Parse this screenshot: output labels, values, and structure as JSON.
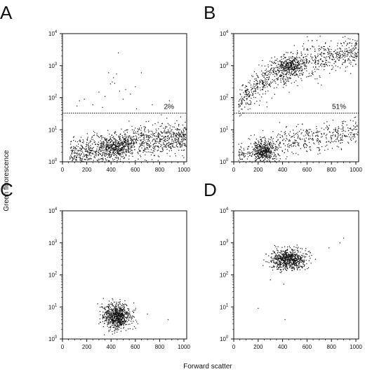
{
  "figure": {
    "ylabel": "Green fluorescence",
    "xlabel": "Forward scatter"
  },
  "chart_data": [
    {
      "type": "scatter",
      "panel": "A",
      "xlim": [
        0,
        1023
      ],
      "ylim": [
        1,
        10000
      ],
      "yscale": "log",
      "x_ticks": [
        "0",
        "200",
        "400",
        "600",
        "800",
        "1000"
      ],
      "y_ticks": [
        "10",
        "10",
        "10",
        "10",
        "10"
      ],
      "y_tick_exponents": [
        "0",
        "1",
        "2",
        "3",
        "4"
      ],
      "gate": {
        "y": 33,
        "label": "2%"
      },
      "populations": [
        {
          "x_trend": [
            [
              60,
              1.6
            ],
            [
              300,
              2.2
            ],
            [
              500,
              3.2
            ],
            [
              700,
              4.5
            ],
            [
              980,
              6
            ]
          ],
          "x_range": [
            60,
            1020
          ],
          "n": 1200,
          "log_spread": 0.24
        },
        {
          "center": [
            450,
            3
          ],
          "sd": [
            60,
            0.15
          ],
          "n": 250
        },
        {
          "points": [
            [
              380,
              600
            ],
            [
              395,
              270
            ],
            [
              410,
              310
            ],
            [
              430,
              280
            ],
            [
              445,
              550
            ],
            [
              460,
              2500
            ],
            [
              520,
              180
            ],
            [
              560,
              130
            ],
            [
              650,
              600
            ],
            [
              880,
              80
            ],
            [
              600,
              220
            ],
            [
              470,
              160
            ],
            [
              350,
              110
            ],
            [
              300,
              150
            ],
            [
              140,
              80
            ],
            [
              180,
              90
            ],
            [
              420,
              420
            ],
            [
              500,
              90
            ],
            [
              740,
              60
            ],
            [
              250,
              60
            ],
            [
              330,
              50
            ],
            [
              610,
              45
            ],
            [
              870,
              50
            ],
            [
              120,
              55
            ]
          ]
        }
      ]
    },
    {
      "type": "scatter",
      "panel": "B",
      "xlim": [
        0,
        1023
      ],
      "ylim": [
        1,
        10000
      ],
      "yscale": "log",
      "x_ticks": [
        "0",
        "200",
        "400",
        "600",
        "800",
        "1000"
      ],
      "y_ticks": [
        "10",
        "10",
        "10",
        "10",
        "10"
      ],
      "y_tick_exponents": [
        "0",
        "1",
        "2",
        "3",
        "4"
      ],
      "gate": {
        "y": 33,
        "label": "51%"
      },
      "populations": [
        {
          "x_trend": [
            [
              60,
              80
            ],
            [
              200,
              250
            ],
            [
              400,
              700
            ],
            [
              600,
              1300
            ],
            [
              800,
              2000
            ],
            [
              1000,
              2800
            ]
          ],
          "x_range": [
            40,
            1020
          ],
          "n": 900,
          "log_spread": 0.25
        },
        {
          "center": [
            460,
            1000
          ],
          "sd": [
            60,
            0.14
          ],
          "n": 250
        },
        {
          "x_trend": [
            [
              40,
              1.5
            ],
            [
              300,
              3
            ],
            [
              500,
              4
            ],
            [
              700,
              6
            ],
            [
              1000,
              10
            ]
          ],
          "x_range": [
            40,
            1020
          ],
          "n": 550,
          "log_spread": 0.22
        },
        {
          "center": [
            250,
            2.2
          ],
          "sd": [
            45,
            0.15
          ],
          "n": 350
        }
      ]
    },
    {
      "type": "scatter",
      "panel": "C",
      "xlim": [
        0,
        1023
      ],
      "ylim": [
        1,
        10000
      ],
      "yscale": "log",
      "x_ticks": [
        "0",
        "200",
        "400",
        "600",
        "800",
        "1000"
      ],
      "y_ticks": [
        "10",
        "10",
        "10",
        "10",
        "10"
      ],
      "y_tick_exponents": [
        "0",
        "1",
        "2",
        "3",
        "4"
      ],
      "populations": [
        {
          "center": [
            450,
            5
          ],
          "sd": [
            55,
            0.2
          ],
          "n": 750
        },
        {
          "points": [
            [
              870,
              4
            ],
            [
              600,
              8
            ],
            [
              620,
              3
            ],
            [
              300,
              3
            ],
            [
              330,
              10
            ],
            [
              700,
              6
            ]
          ]
        }
      ]
    },
    {
      "type": "scatter",
      "panel": "D",
      "xlim": [
        0,
        1023
      ],
      "ylim": [
        1,
        10000
      ],
      "yscale": "log",
      "x_ticks": [
        "0",
        "200",
        "400",
        "600",
        "800",
        "1000"
      ],
      "y_ticks": [
        "10",
        "10",
        "10",
        "10",
        "10"
      ],
      "y_tick_exponents": [
        "0",
        "1",
        "2",
        "3",
        "4"
      ],
      "populations": [
        {
          "center": [
            450,
            300
          ],
          "sd": [
            70,
            0.16
          ],
          "n": 700
        },
        {
          "points": [
            [
              200,
              9
            ],
            [
              420,
              4
            ],
            [
              900,
              1400
            ],
            [
              870,
              1000
            ],
            [
              780,
              700
            ],
            [
              300,
              70
            ],
            [
              380,
              120
            ]
          ]
        }
      ]
    }
  ]
}
